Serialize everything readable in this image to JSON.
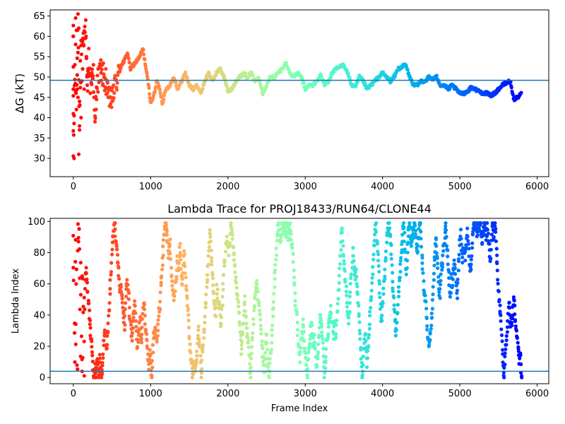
{
  "chart_data": [
    {
      "type": "scatter",
      "title": "",
      "xlabel": "",
      "ylabel": "ΔG (kT)",
      "xlim": [
        -300,
        6150
      ],
      "ylim": [
        25.5,
        66.5
      ],
      "xticks": [
        0,
        1000,
        2000,
        3000,
        4000,
        5000,
        6000
      ],
      "yticks": [
        30,
        35,
        40,
        45,
        50,
        55,
        60,
        65
      ],
      "hline": 49.2,
      "hline_color": "#1f77b4",
      "colormap": "rainbow",
      "color_direction": "early frames red, late frames violet",
      "grid": false,
      "legend": "none",
      "trace_points": [
        [
          0,
          60
        ],
        [
          0,
          30
        ],
        [
          20,
          50
        ],
        [
          40,
          45
        ],
        [
          60,
          66
        ],
        [
          80,
          38
        ],
        [
          100,
          55
        ],
        [
          130,
          58
        ],
        [
          160,
          62
        ],
        [
          180,
          48
        ],
        [
          200,
          52
        ],
        [
          250,
          50
        ],
        [
          280,
          39
        ],
        [
          300,
          47
        ],
        [
          350,
          52
        ],
        [
          400,
          50
        ],
        [
          450,
          45
        ],
        [
          500,
          44
        ],
        [
          540,
          48
        ],
        [
          580,
          50
        ],
        [
          620,
          53
        ],
        [
          660,
          54
        ],
        [
          700,
          56
        ],
        [
          740,
          52
        ],
        [
          780,
          53
        ],
        [
          820,
          54
        ],
        [
          860,
          55
        ],
        [
          900,
          57
        ],
        [
          940,
          52
        ],
        [
          980,
          47
        ],
        [
          1000,
          43.5
        ],
        [
          1050,
          46
        ],
        [
          1080,
          49
        ],
        [
          1120,
          47
        ],
        [
          1150,
          43.5
        ],
        [
          1200,
          47
        ],
        [
          1250,
          48
        ],
        [
          1300,
          50
        ],
        [
          1350,
          47
        ],
        [
          1400,
          49
        ],
        [
          1450,
          51
        ],
        [
          1500,
          48
        ],
        [
          1550,
          47
        ],
        [
          1600,
          48
        ],
        [
          1650,
          46
        ],
        [
          1700,
          49
        ],
        [
          1750,
          51
        ],
        [
          1800,
          49
        ],
        [
          1850,
          51
        ],
        [
          1900,
          52
        ],
        [
          1950,
          50
        ],
        [
          2000,
          46.5
        ],
        [
          2050,
          47
        ],
        [
          2100,
          49
        ],
        [
          2150,
          50
        ],
        [
          2200,
          51
        ],
        [
          2250,
          50
        ],
        [
          2300,
          51
        ],
        [
          2350,
          49
        ],
        [
          2400,
          50
        ],
        [
          2450,
          46
        ],
        [
          2500,
          48
        ],
        [
          2550,
          50
        ],
        [
          2600,
          50
        ],
        [
          2650,
          51
        ],
        [
          2700,
          52
        ],
        [
          2750,
          53.5
        ],
        [
          2800,
          51
        ],
        [
          2850,
          50
        ],
        [
          2900,
          51
        ],
        [
          2950,
          50
        ],
        [
          3000,
          47
        ],
        [
          3050,
          48
        ],
        [
          3100,
          48
        ],
        [
          3150,
          49
        ],
        [
          3200,
          50.5
        ],
        [
          3250,
          48
        ],
        [
          3300,
          49
        ],
        [
          3350,
          51
        ],
        [
          3400,
          52
        ],
        [
          3450,
          52.5
        ],
        [
          3500,
          53
        ],
        [
          3550,
          51
        ],
        [
          3600,
          48
        ],
        [
          3650,
          47.5
        ],
        [
          3700,
          50
        ],
        [
          3750,
          49
        ],
        [
          3800,
          47
        ],
        [
          3850,
          48
        ],
        [
          3900,
          49
        ],
        [
          3950,
          50
        ],
        [
          4000,
          51
        ],
        [
          4050,
          50
        ],
        [
          4100,
          49
        ],
        [
          4150,
          50
        ],
        [
          4200,
          52
        ],
        [
          4250,
          52.5
        ],
        [
          4300,
          53
        ],
        [
          4350,
          50
        ],
        [
          4400,
          48
        ],
        [
          4450,
          48
        ],
        [
          4500,
          49
        ],
        [
          4550,
          49
        ],
        [
          4600,
          50
        ],
        [
          4650,
          49.5
        ],
        [
          4700,
          50
        ],
        [
          4750,
          48
        ],
        [
          4800,
          48
        ],
        [
          4850,
          47
        ],
        [
          4900,
          48
        ],
        [
          4950,
          47
        ],
        [
          5000,
          46
        ],
        [
          5050,
          46
        ],
        [
          5100,
          46.5
        ],
        [
          5150,
          47.5
        ],
        [
          5200,
          47
        ],
        [
          5250,
          46.5
        ],
        [
          5300,
          46
        ],
        [
          5350,
          46
        ],
        [
          5400,
          45.5
        ],
        [
          5450,
          46
        ],
        [
          5500,
          47
        ],
        [
          5550,
          48
        ],
        [
          5600,
          48.5
        ],
        [
          5650,
          49
        ],
        [
          5700,
          44.5
        ],
        [
          5750,
          45
        ],
        [
          5800,
          46
        ]
      ],
      "early_scatter_points": [
        [
          0,
          60
        ],
        [
          0,
          60
        ],
        [
          0,
          41
        ],
        [
          0,
          47
        ],
        [
          10,
          30
        ],
        [
          10,
          40.5
        ],
        [
          20,
          53
        ],
        [
          30,
          64.5
        ],
        [
          30,
          58
        ],
        [
          40,
          61.5
        ],
        [
          40,
          42
        ],
        [
          50,
          47
        ],
        [
          50,
          50.5
        ],
        [
          60,
          56
        ],
        [
          60,
          45
        ],
        [
          70,
          62
        ],
        [
          70,
          31
        ],
        [
          80,
          37
        ],
        [
          80,
          44
        ],
        [
          90,
          54
        ],
        [
          100,
          59
        ],
        [
          100,
          40
        ],
        [
          110,
          49
        ],
        [
          120,
          52
        ],
        [
          130,
          58
        ],
        [
          140,
          47
        ],
        [
          150,
          61
        ],
        [
          160,
          64
        ],
        [
          170,
          55
        ],
        [
          180,
          48
        ],
        [
          190,
          52
        ],
        [
          200,
          57
        ],
        [
          220,
          46
        ],
        [
          240,
          51
        ],
        [
          260,
          53
        ],
        [
          280,
          39
        ],
        [
          300,
          47.5
        ],
        [
          320,
          52
        ],
        [
          340,
          49
        ],
        [
          360,
          51
        ],
        [
          380,
          48
        ],
        [
          400,
          50
        ],
        [
          420,
          52
        ],
        [
          440,
          46
        ],
        [
          460,
          45
        ],
        [
          480,
          47
        ],
        [
          500,
          44
        ],
        [
          520,
          48
        ]
      ]
    },
    {
      "type": "scatter",
      "title": "Lambda Trace for PROJ18433/RUN64/CLONE44",
      "xlabel": "Frame Index",
      "ylabel": "Lambda Index",
      "xlim": [
        -300,
        6150
      ],
      "ylim": [
        -4,
        102
      ],
      "xticks": [
        0,
        1000,
        2000,
        3000,
        4000,
        5000,
        6000
      ],
      "yticks": [
        0,
        20,
        40,
        60,
        80,
        100
      ],
      "hline": 4,
      "hline_color": "#1f77b4",
      "colormap": "rainbow",
      "color_direction": "early frames red, late frames violet",
      "grid": false,
      "legend": "none",
      "frames": [
        0,
        5800
      ],
      "lambda_range": [
        0,
        99
      ]
    }
  ]
}
